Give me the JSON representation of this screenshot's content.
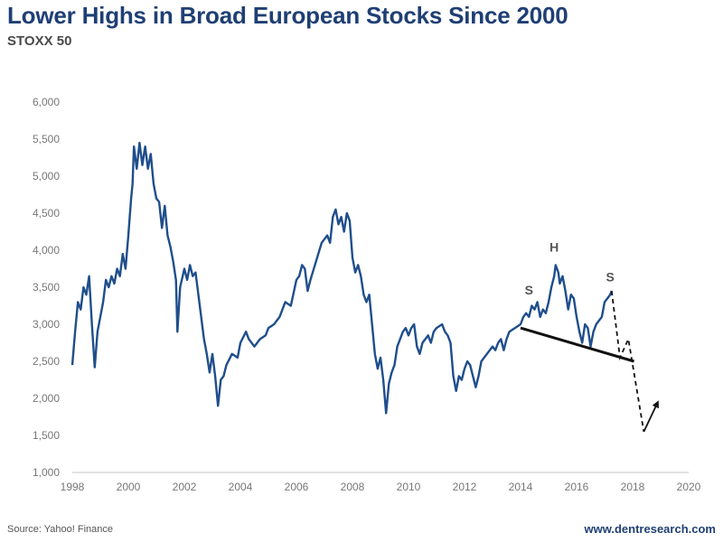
{
  "header": {
    "title": "Lower Highs in Broad European Stocks Since 2000",
    "subtitle": "STOXX 50"
  },
  "footer": {
    "source": "Source: Yahoo! Finance",
    "brand": "www.dentresearch.com"
  },
  "colors": {
    "title": "#1f3f74",
    "series": "#1f4e8c",
    "annotation": "#111111",
    "axis": "#d9d9d9"
  },
  "chart_data": {
    "type": "line",
    "title": "Lower Highs in Broad European Stocks Since 2000",
    "subtitle": "STOXX 50",
    "xlabel": "",
    "ylabel": "",
    "xlim": [
      1998,
      2020
    ],
    "ylim": [
      1000,
      6000
    ],
    "grid": false,
    "legend": "none",
    "x_ticks": [
      "1998",
      "2000",
      "2002",
      "2004",
      "2006",
      "2008",
      "2010",
      "2012",
      "2014",
      "2016",
      "2018",
      "2020"
    ],
    "y_ticks": [
      "1,000",
      "1,500",
      "2,000",
      "2,500",
      "3,000",
      "3,500",
      "4,000",
      "4,500",
      "5,000",
      "5,500",
      "6,000"
    ],
    "series": [
      {
        "name": "STOXX 50",
        "points": [
          [
            1998.0,
            2450
          ],
          [
            1998.1,
            2900
          ],
          [
            1998.2,
            3300
          ],
          [
            1998.3,
            3200
          ],
          [
            1998.4,
            3500
          ],
          [
            1998.5,
            3400
          ],
          [
            1998.6,
            3650
          ],
          [
            1998.7,
            3000
          ],
          [
            1998.8,
            2420
          ],
          [
            1998.9,
            2900
          ],
          [
            1999.0,
            3100
          ],
          [
            1999.1,
            3300
          ],
          [
            1999.2,
            3600
          ],
          [
            1999.3,
            3500
          ],
          [
            1999.4,
            3650
          ],
          [
            1999.5,
            3550
          ],
          [
            1999.6,
            3750
          ],
          [
            1999.7,
            3650
          ],
          [
            1999.8,
            3950
          ],
          [
            1999.9,
            3750
          ],
          [
            2000.0,
            4200
          ],
          [
            2000.1,
            4700
          ],
          [
            2000.15,
            4900
          ],
          [
            2000.2,
            5400
          ],
          [
            2000.3,
            5100
          ],
          [
            2000.4,
            5450
          ],
          [
            2000.5,
            5150
          ],
          [
            2000.6,
            5400
          ],
          [
            2000.7,
            5100
          ],
          [
            2000.8,
            5300
          ],
          [
            2000.9,
            4900
          ],
          [
            2001.0,
            4700
          ],
          [
            2001.1,
            4650
          ],
          [
            2001.2,
            4300
          ],
          [
            2001.3,
            4600
          ],
          [
            2001.4,
            4200
          ],
          [
            2001.5,
            4050
          ],
          [
            2001.6,
            3850
          ],
          [
            2001.7,
            3600
          ],
          [
            2001.75,
            2900
          ],
          [
            2001.85,
            3500
          ],
          [
            2002.0,
            3750
          ],
          [
            2002.1,
            3600
          ],
          [
            2002.2,
            3800
          ],
          [
            2002.3,
            3650
          ],
          [
            2002.4,
            3700
          ],
          [
            2002.5,
            3400
          ],
          [
            2002.6,
            3100
          ],
          [
            2002.7,
            2800
          ],
          [
            2002.8,
            2600
          ],
          [
            2002.9,
            2350
          ],
          [
            2003.0,
            2600
          ],
          [
            2003.1,
            2300
          ],
          [
            2003.2,
            1900
          ],
          [
            2003.3,
            2250
          ],
          [
            2003.4,
            2300
          ],
          [
            2003.5,
            2450
          ],
          [
            2003.7,
            2600
          ],
          [
            2003.9,
            2550
          ],
          [
            2004.0,
            2750
          ],
          [
            2004.2,
            2900
          ],
          [
            2004.3,
            2800
          ],
          [
            2004.5,
            2700
          ],
          [
            2004.7,
            2800
          ],
          [
            2004.9,
            2850
          ],
          [
            2005.0,
            2950
          ],
          [
            2005.2,
            3000
          ],
          [
            2005.4,
            3100
          ],
          [
            2005.6,
            3300
          ],
          [
            2005.8,
            3250
          ],
          [
            2006.0,
            3600
          ],
          [
            2006.1,
            3650
          ],
          [
            2006.2,
            3800
          ],
          [
            2006.3,
            3750
          ],
          [
            2006.4,
            3450
          ],
          [
            2006.5,
            3600
          ],
          [
            2006.7,
            3850
          ],
          [
            2006.9,
            4100
          ],
          [
            2007.0,
            4150
          ],
          [
            2007.1,
            4200
          ],
          [
            2007.2,
            4100
          ],
          [
            2007.3,
            4450
          ],
          [
            2007.4,
            4550
          ],
          [
            2007.5,
            4350
          ],
          [
            2007.6,
            4450
          ],
          [
            2007.7,
            4250
          ],
          [
            2007.8,
            4500
          ],
          [
            2007.9,
            4400
          ],
          [
            2008.0,
            3900
          ],
          [
            2008.1,
            3700
          ],
          [
            2008.2,
            3800
          ],
          [
            2008.3,
            3650
          ],
          [
            2008.4,
            3400
          ],
          [
            2008.5,
            3300
          ],
          [
            2008.6,
            3400
          ],
          [
            2008.7,
            3000
          ],
          [
            2008.8,
            2600
          ],
          [
            2008.9,
            2400
          ],
          [
            2009.0,
            2550
          ],
          [
            2009.1,
            2250
          ],
          [
            2009.2,
            1800
          ],
          [
            2009.3,
            2200
          ],
          [
            2009.4,
            2350
          ],
          [
            2009.5,
            2450
          ],
          [
            2009.6,
            2700
          ],
          [
            2009.7,
            2800
          ],
          [
            2009.8,
            2900
          ],
          [
            2009.9,
            2950
          ],
          [
            2010.0,
            2850
          ],
          [
            2010.1,
            2950
          ],
          [
            2010.2,
            3000
          ],
          [
            2010.3,
            2700
          ],
          [
            2010.4,
            2600
          ],
          [
            2010.5,
            2750
          ],
          [
            2010.6,
            2800
          ],
          [
            2010.7,
            2850
          ],
          [
            2010.8,
            2750
          ],
          [
            2010.9,
            2900
          ],
          [
            2011.0,
            2950
          ],
          [
            2011.2,
            3000
          ],
          [
            2011.3,
            2900
          ],
          [
            2011.4,
            2850
          ],
          [
            2011.5,
            2750
          ],
          [
            2011.6,
            2300
          ],
          [
            2011.7,
            2100
          ],
          [
            2011.8,
            2300
          ],
          [
            2011.9,
            2250
          ],
          [
            2012.0,
            2400
          ],
          [
            2012.1,
            2500
          ],
          [
            2012.2,
            2450
          ],
          [
            2012.3,
            2300
          ],
          [
            2012.4,
            2150
          ],
          [
            2012.5,
            2300
          ],
          [
            2012.6,
            2500
          ],
          [
            2012.7,
            2550
          ],
          [
            2012.8,
            2600
          ],
          [
            2012.9,
            2650
          ],
          [
            2013.0,
            2700
          ],
          [
            2013.1,
            2650
          ],
          [
            2013.2,
            2750
          ],
          [
            2013.3,
            2800
          ],
          [
            2013.4,
            2650
          ],
          [
            2013.5,
            2800
          ],
          [
            2013.6,
            2900
          ],
          [
            2013.8,
            2950
          ],
          [
            2014.0,
            3000
          ],
          [
            2014.1,
            3100
          ],
          [
            2014.2,
            3150
          ],
          [
            2014.3,
            3100
          ],
          [
            2014.4,
            3250
          ],
          [
            2014.5,
            3200
          ],
          [
            2014.6,
            3300
          ],
          [
            2014.7,
            3100
          ],
          [
            2014.8,
            3200
          ],
          [
            2014.9,
            3150
          ],
          [
            2015.0,
            3300
          ],
          [
            2015.1,
            3500
          ],
          [
            2015.2,
            3650
          ],
          [
            2015.25,
            3800
          ],
          [
            2015.35,
            3700
          ],
          [
            2015.4,
            3550
          ],
          [
            2015.5,
            3650
          ],
          [
            2015.6,
            3450
          ],
          [
            2015.7,
            3200
          ],
          [
            2015.8,
            3400
          ],
          [
            2015.9,
            3350
          ],
          [
            2016.0,
            3100
          ],
          [
            2016.1,
            2900
          ],
          [
            2016.2,
            2750
          ],
          [
            2016.3,
            3000
          ],
          [
            2016.4,
            2950
          ],
          [
            2016.5,
            2700
          ],
          [
            2016.6,
            2900
          ],
          [
            2016.7,
            3000
          ],
          [
            2016.8,
            3050
          ],
          [
            2016.9,
            3100
          ],
          [
            2017.0,
            3300
          ],
          [
            2017.1,
            3350
          ],
          [
            2017.2,
            3400
          ],
          [
            2017.25,
            3450
          ]
        ]
      }
    ],
    "annotations": {
      "labels": [
        {
          "text": "S",
          "x": 2014.3,
          "y": 3400
        },
        {
          "text": "H",
          "x": 2015.2,
          "y": 3980
        },
        {
          "text": "S",
          "x": 2017.2,
          "y": 3580
        }
      ],
      "neckline": [
        [
          2014.0,
          2950
        ],
        [
          2018.05,
          2500
        ]
      ],
      "projection_dashed": [
        [
          2017.25,
          3450
        ],
        [
          2017.55,
          2550
        ],
        [
          2017.85,
          2800
        ],
        [
          2018.4,
          1550
        ]
      ],
      "projection_arrow": [
        [
          2018.4,
          1550
        ],
        [
          2018.9,
          1950
        ]
      ]
    }
  }
}
